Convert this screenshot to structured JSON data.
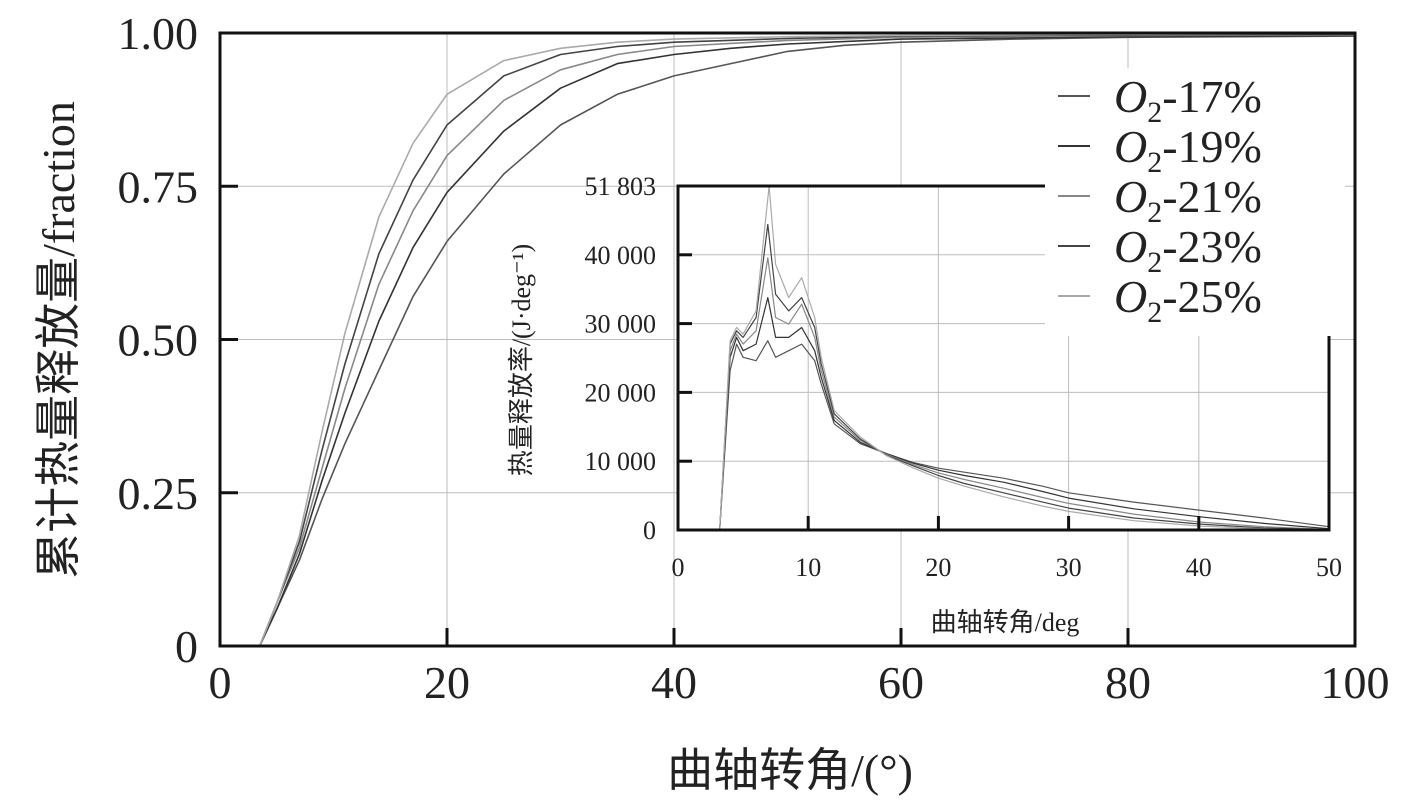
{
  "chart_data": [
    {
      "type": "line",
      "xlabel": "曲轴转角/(°)",
      "ylabel": "累计热量释放量/fraction",
      "xlim": [
        0,
        100
      ],
      "ylim": [
        0,
        1.0
      ],
      "xticks": [
        "0",
        "20",
        "40",
        "60",
        "80",
        "100"
      ],
      "yticks": [
        "0",
        "0.25",
        "0.50",
        "0.75",
        "1.00"
      ],
      "grid": true,
      "legend_position": "top-right",
      "series": [
        {
          "name": "O2-17%",
          "label_base": "O",
          "label_sub": "2",
          "label_rest": "-17%",
          "color": "#555555",
          "x": [
            3.5,
            5,
            7,
            9,
            11,
            14,
            17,
            20,
            25,
            30,
            35,
            40,
            45,
            50,
            55,
            60,
            70,
            80,
            100
          ],
          "y": [
            0,
            0.06,
            0.14,
            0.24,
            0.33,
            0.45,
            0.57,
            0.66,
            0.77,
            0.85,
            0.9,
            0.93,
            0.95,
            0.97,
            0.98,
            0.985,
            0.99,
            0.993,
            0.995
          ]
        },
        {
          "name": "O2-19%",
          "label_base": "O",
          "label_sub": "2",
          "label_rest": "-19%",
          "color": "#333333",
          "x": [
            3.5,
            5,
            7,
            9,
            11,
            14,
            17,
            20,
            25,
            30,
            35,
            40,
            45,
            50,
            60,
            70,
            80,
            100
          ],
          "y": [
            0,
            0.06,
            0.15,
            0.27,
            0.38,
            0.53,
            0.65,
            0.74,
            0.84,
            0.91,
            0.95,
            0.965,
            0.975,
            0.982,
            0.99,
            0.992,
            0.994,
            0.996
          ]
        },
        {
          "name": "O2-21%",
          "label_base": "O",
          "label_sub": "2",
          "label_rest": "-21%",
          "color": "#888888",
          "x": [
            3.5,
            5,
            7,
            9,
            11,
            14,
            17,
            20,
            25,
            30,
            35,
            40,
            50,
            60,
            80,
            100
          ],
          "y": [
            0,
            0.07,
            0.16,
            0.29,
            0.42,
            0.59,
            0.71,
            0.8,
            0.89,
            0.94,
            0.965,
            0.978,
            0.988,
            0.993,
            0.996,
            0.997
          ]
        },
        {
          "name": "O2-23%",
          "label_base": "O",
          "label_sub": "2",
          "label_rest": "-23%",
          "color": "#444444",
          "x": [
            3.5,
            5,
            7,
            9,
            11,
            14,
            17,
            20,
            25,
            30,
            35,
            40,
            50,
            60,
            80,
            100
          ],
          "y": [
            0,
            0.07,
            0.17,
            0.32,
            0.46,
            0.64,
            0.76,
            0.85,
            0.93,
            0.965,
            0.978,
            0.985,
            0.991,
            0.995,
            0.997,
            0.998
          ]
        },
        {
          "name": "O2-25%",
          "label_base": "O",
          "label_sub": "2",
          "label_rest": "-25%",
          "color": "#aaaaaa",
          "x": [
            3.5,
            5,
            7,
            9,
            11,
            14,
            17,
            20,
            25,
            30,
            35,
            40,
            50,
            60,
            80,
            100
          ],
          "y": [
            0,
            0.07,
            0.18,
            0.35,
            0.51,
            0.7,
            0.82,
            0.9,
            0.955,
            0.975,
            0.985,
            0.99,
            0.994,
            0.996,
            0.998,
            0.999
          ]
        }
      ]
    },
    {
      "type": "line",
      "xlabel": "曲轴转角/deg",
      "ylabel": "热量释放率/(J·deg⁻¹)",
      "xlim": [
        0,
        50
      ],
      "ylim": [
        0,
        51803
      ],
      "xticks": [
        "0",
        "10",
        "20",
        "30",
        "40",
        "50"
      ],
      "yticks": [
        "0",
        "10 000",
        "20 000",
        "30 000",
        "40 000",
        "51 803"
      ],
      "grid": true,
      "series": [
        {
          "name": "O2-17%",
          "color": "#555555",
          "x": [
            3.2,
            4,
            4.5,
            5,
            6,
            6.9,
            7.5,
            8.5,
            9.5,
            10.5,
            11,
            12,
            14,
            16,
            18,
            20,
            22,
            25,
            28,
            30,
            35,
            40,
            45,
            50
          ],
          "y": [
            0,
            24000,
            28000,
            26000,
            25500,
            28500,
            26000,
            27000,
            28000,
            25500,
            22000,
            16000,
            13000,
            11500,
            10200,
            9300,
            8700,
            7800,
            6600,
            5600,
            4200,
            3000,
            1800,
            500
          ]
        },
        {
          "name": "O2-19%",
          "color": "#333333",
          "x": [
            3.2,
            4,
            4.5,
            5,
            6,
            6.9,
            7.5,
            8.5,
            9.5,
            10.5,
            11,
            12,
            14,
            16,
            18,
            20,
            22,
            25,
            28,
            30,
            35,
            40,
            45,
            50
          ],
          "y": [
            0,
            26000,
            29000,
            27000,
            28000,
            35000,
            29000,
            29000,
            30500,
            27000,
            23000,
            16500,
            13200,
            11500,
            10100,
            9000,
            8200,
            7200,
            5800,
            4800,
            3200,
            2000,
            1000,
            200
          ]
        },
        {
          "name": "O2-21%",
          "color": "#888888",
          "x": [
            3.2,
            4,
            4.5,
            5,
            6,
            6.9,
            7.5,
            8.5,
            9.5,
            10.5,
            11,
            12,
            14,
            16,
            18,
            20,
            22,
            25,
            28,
            30,
            35,
            40,
            45,
            50
          ],
          "y": [
            0,
            27000,
            29500,
            28000,
            30000,
            41000,
            32000,
            31000,
            34000,
            29000,
            24000,
            17000,
            13500,
            11400,
            9900,
            8600,
            7600,
            6300,
            4900,
            4000,
            2400,
            1200,
            500,
            100
          ]
        },
        {
          "name": "O2-23%",
          "color": "#444444",
          "x": [
            3.2,
            4,
            4.5,
            5,
            6,
            6.9,
            7.5,
            8.5,
            9.5,
            10.5,
            11,
            12,
            14,
            16,
            18,
            20,
            22,
            25,
            28,
            30,
            35,
            40,
            45,
            50
          ],
          "y": [
            0,
            28000,
            30000,
            29000,
            32000,
            46000,
            35500,
            33000,
            35000,
            30500,
            25000,
            17500,
            13700,
            11300,
            9700,
            8200,
            7000,
            5600,
            4200,
            3300,
            1800,
            900,
            300,
            50
          ]
        },
        {
          "name": "O2-25%",
          "color": "#aaaaaa",
          "x": [
            3.2,
            4,
            4.5,
            5,
            6,
            7,
            7.5,
            8.5,
            9.5,
            10.5,
            11,
            12,
            14,
            16,
            18,
            20,
            22,
            25,
            28,
            30,
            35,
            40,
            45,
            50
          ],
          "y": [
            0,
            28500,
            30500,
            29500,
            33000,
            51803,
            40000,
            35000,
            38000,
            32000,
            26000,
            18000,
            14000,
            11200,
            9400,
            7800,
            6600,
            5000,
            3600,
            2800,
            1400,
            600,
            200,
            0
          ]
        }
      ]
    }
  ]
}
